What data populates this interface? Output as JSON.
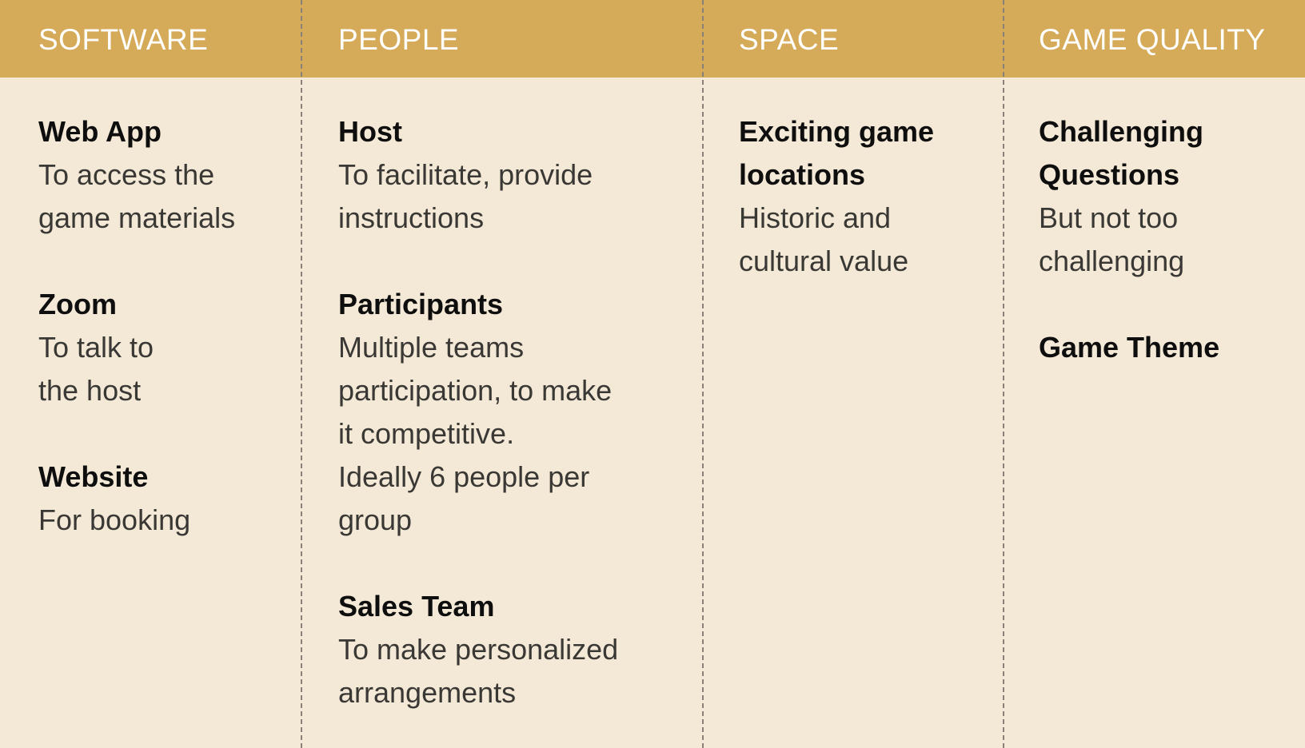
{
  "columns": [
    {
      "title": "SOFTWARE",
      "items": [
        {
          "title_lines": [
            "Web App"
          ],
          "desc_lines": [
            "To access the",
            "game materials"
          ]
        },
        {
          "title_lines": [
            "Zoom"
          ],
          "desc_lines": [
            "To talk to",
            "the host"
          ]
        },
        {
          "title_lines": [
            "Website"
          ],
          "desc_lines": [
            "For booking"
          ]
        }
      ]
    },
    {
      "title": "PEOPLE",
      "items": [
        {
          "title_lines": [
            "Host"
          ],
          "desc_lines": [
            "To facilitate, provide",
            "instructions"
          ]
        },
        {
          "title_lines": [
            "Participants"
          ],
          "desc_lines": [
            "Multiple teams",
            "participation, to make",
            "it competitive.",
            "Ideally 6 people per",
            "group"
          ]
        },
        {
          "title_lines": [
            "Sales Team"
          ],
          "desc_lines": [
            "To make personalized",
            "arrangements"
          ]
        }
      ]
    },
    {
      "title": "SPACE",
      "items": [
        {
          "title_lines": [
            "Exciting game",
            "locations"
          ],
          "desc_lines": [
            "Historic and",
            "cultural value"
          ]
        }
      ]
    },
    {
      "title": "GAME QUALITY",
      "items": [
        {
          "title_lines": [
            "Challenging",
            "Questions"
          ],
          "desc_lines": [
            "But not too",
            "challenging"
          ]
        },
        {
          "title_lines": [
            "Game Theme"
          ],
          "desc_lines": []
        }
      ]
    }
  ],
  "colors": {
    "header_band": "#d5aa58",
    "background": "#f4e9d6",
    "divider": "#8a8278",
    "header_text": "#ffffff",
    "item_title": "#0e0e0e",
    "item_desc": "#3a3835"
  }
}
